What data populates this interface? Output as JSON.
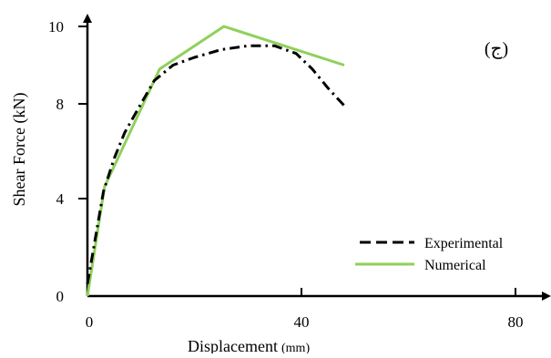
{
  "chart_data": {
    "type": "line",
    "title": "",
    "panel_label": "(ج)",
    "xlabel": "Displacement",
    "xlabel_unit": "(mm)",
    "ylabel": "Shear Force (kN)",
    "xlim": [
      0,
      80
    ],
    "ylim": [
      0,
      10
    ],
    "x_ticks": [
      0,
      40,
      80
    ],
    "x_tick_labels": [
      "0",
      "40",
      "80"
    ],
    "y_ticks": [
      0,
      4,
      8,
      10
    ],
    "y_tick_labels": [
      "0",
      "4",
      "8",
      "10"
    ],
    "y_scale": "nonlinear",
    "grid": false,
    "legend": {
      "position": "bottom-right"
    },
    "series": [
      {
        "name": "Experimental",
        "style": "dash-dot",
        "color": "#000000",
        "points": [
          [
            0,
            0.5
          ],
          [
            1.5,
            2.4
          ],
          [
            3,
            4.3
          ],
          [
            5,
            5.7
          ],
          [
            7,
            6.8
          ],
          [
            9.5,
            7.8
          ],
          [
            12.5,
            8.6
          ],
          [
            16,
            9.0
          ],
          [
            20,
            9.2
          ],
          [
            25,
            9.4
          ],
          [
            30,
            9.5
          ],
          [
            35,
            9.5
          ],
          [
            39,
            9.3
          ],
          [
            42,
            8.9
          ],
          [
            45,
            8.4
          ],
          [
            48.5,
            7.8
          ]
        ]
      },
      {
        "name": "Numerical",
        "style": "solid",
        "color": "#8fd05a",
        "points": [
          [
            0,
            0
          ],
          [
            3.2,
            4.5
          ],
          [
            13.5,
            8.9
          ],
          [
            25.5,
            10.0
          ],
          [
            48,
            9.0
          ]
        ]
      }
    ]
  }
}
